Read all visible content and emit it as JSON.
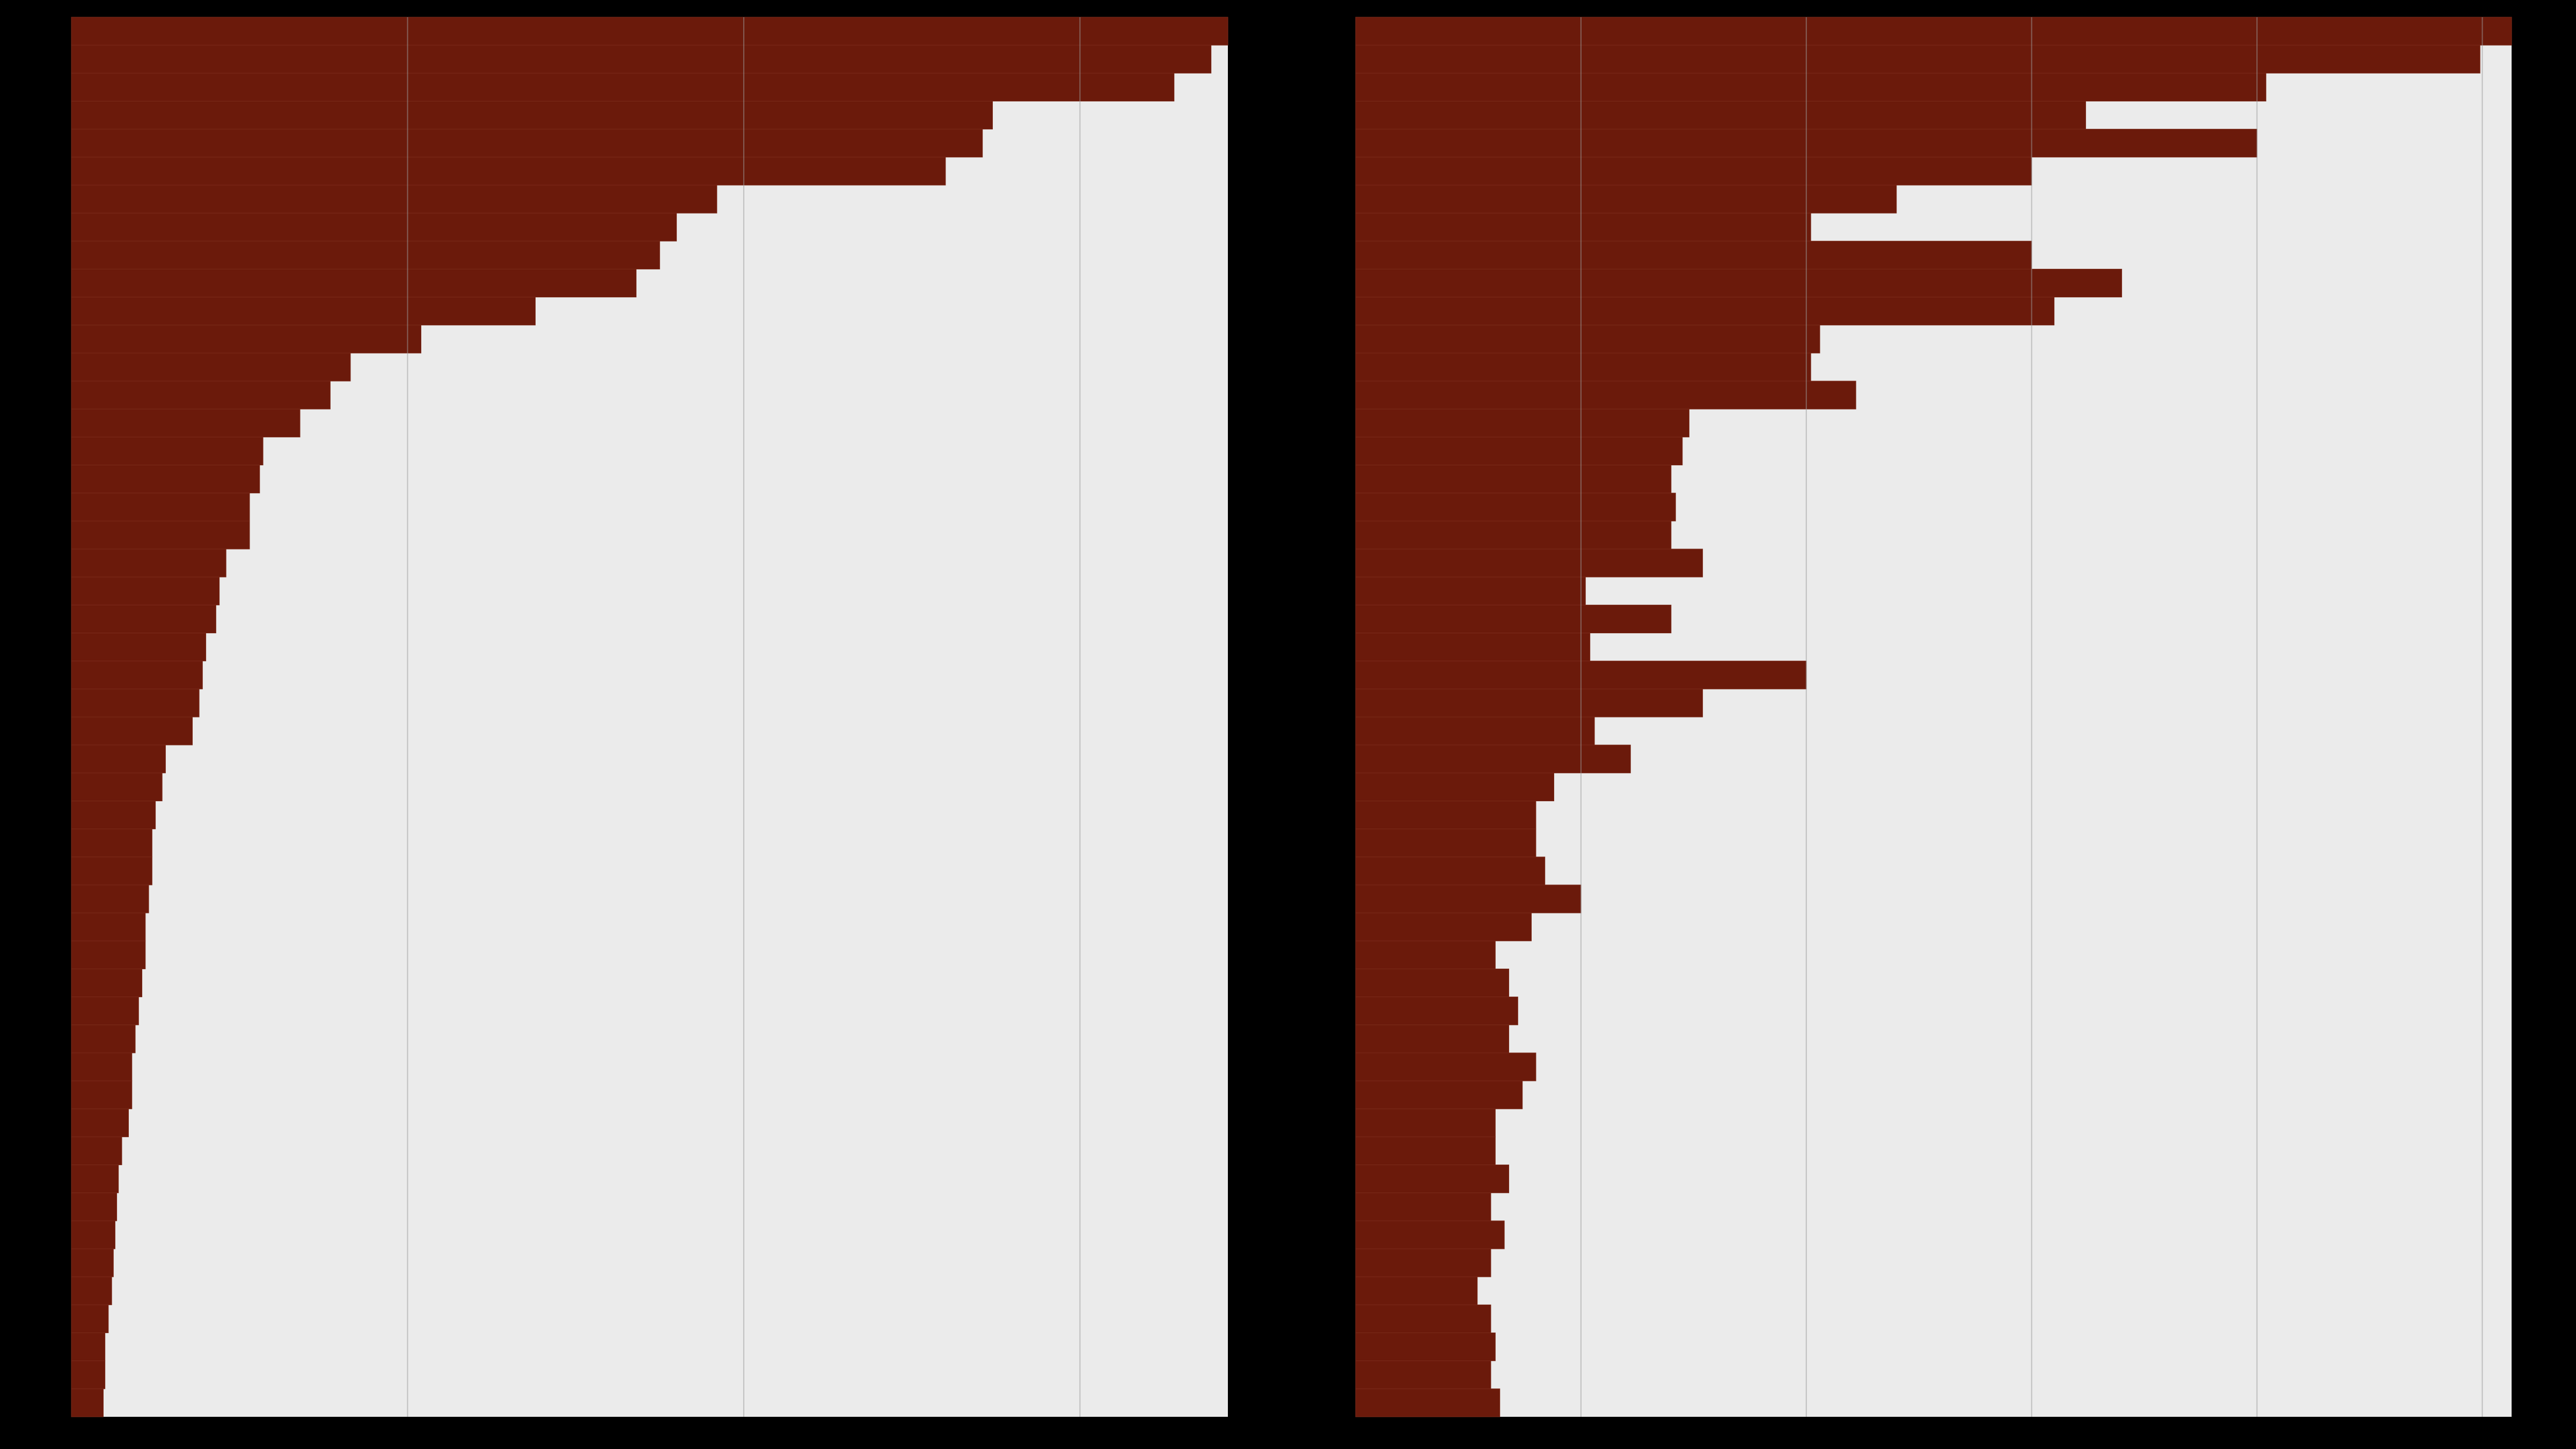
{
  "colors": {
    "background": "#000000",
    "panel": "#ebebeb",
    "bar": "#6b1a0b",
    "bar_divider": "#7a2a1a",
    "grid": "#9a9a9a"
  },
  "chart_data": [
    {
      "type": "bar",
      "orientation": "horizontal",
      "grid": true,
      "title": "",
      "xlabel": "",
      "ylabel": "",
      "xlim": [
        0,
        3.44
      ],
      "values": [
        3.44,
        3.39,
        3.28,
        2.74,
        2.71,
        2.6,
        1.92,
        1.8,
        1.75,
        1.68,
        1.38,
        1.04,
        0.83,
        0.77,
        0.68,
        0.57,
        0.56,
        0.53,
        0.53,
        0.46,
        0.44,
        0.43,
        0.4,
        0.39,
        0.38,
        0.36,
        0.28,
        0.27,
        0.25,
        0.24,
        0.24,
        0.23,
        0.22,
        0.22,
        0.21,
        0.2,
        0.19,
        0.18,
        0.18,
        0.17,
        0.15,
        0.14,
        0.135,
        0.13,
        0.125,
        0.12,
        0.11,
        0.1,
        0.1,
        0.095
      ]
    },
    {
      "type": "bar",
      "orientation": "horizontal",
      "grid": true,
      "title": "",
      "xlabel": "",
      "ylabel": "",
      "xlim": [
        0,
        5.13
      ],
      "values": [
        5.13,
        4.99,
        4.04,
        3.24,
        4.0,
        3.0,
        2.4,
        2.02,
        3.0,
        3.4,
        3.1,
        2.06,
        2.02,
        2.22,
        1.48,
        1.45,
        1.4,
        1.42,
        1.4,
        1.54,
        1.02,
        1.4,
        1.04,
        2.0,
        1.54,
        1.06,
        1.22,
        0.88,
        0.8,
        0.8,
        0.84,
        1.0,
        0.78,
        0.62,
        0.68,
        0.72,
        0.68,
        0.8,
        0.74,
        0.62,
        0.62,
        0.68,
        0.6,
        0.66,
        0.6,
        0.54,
        0.6,
        0.62,
        0.6,
        0.64
      ]
    }
  ]
}
